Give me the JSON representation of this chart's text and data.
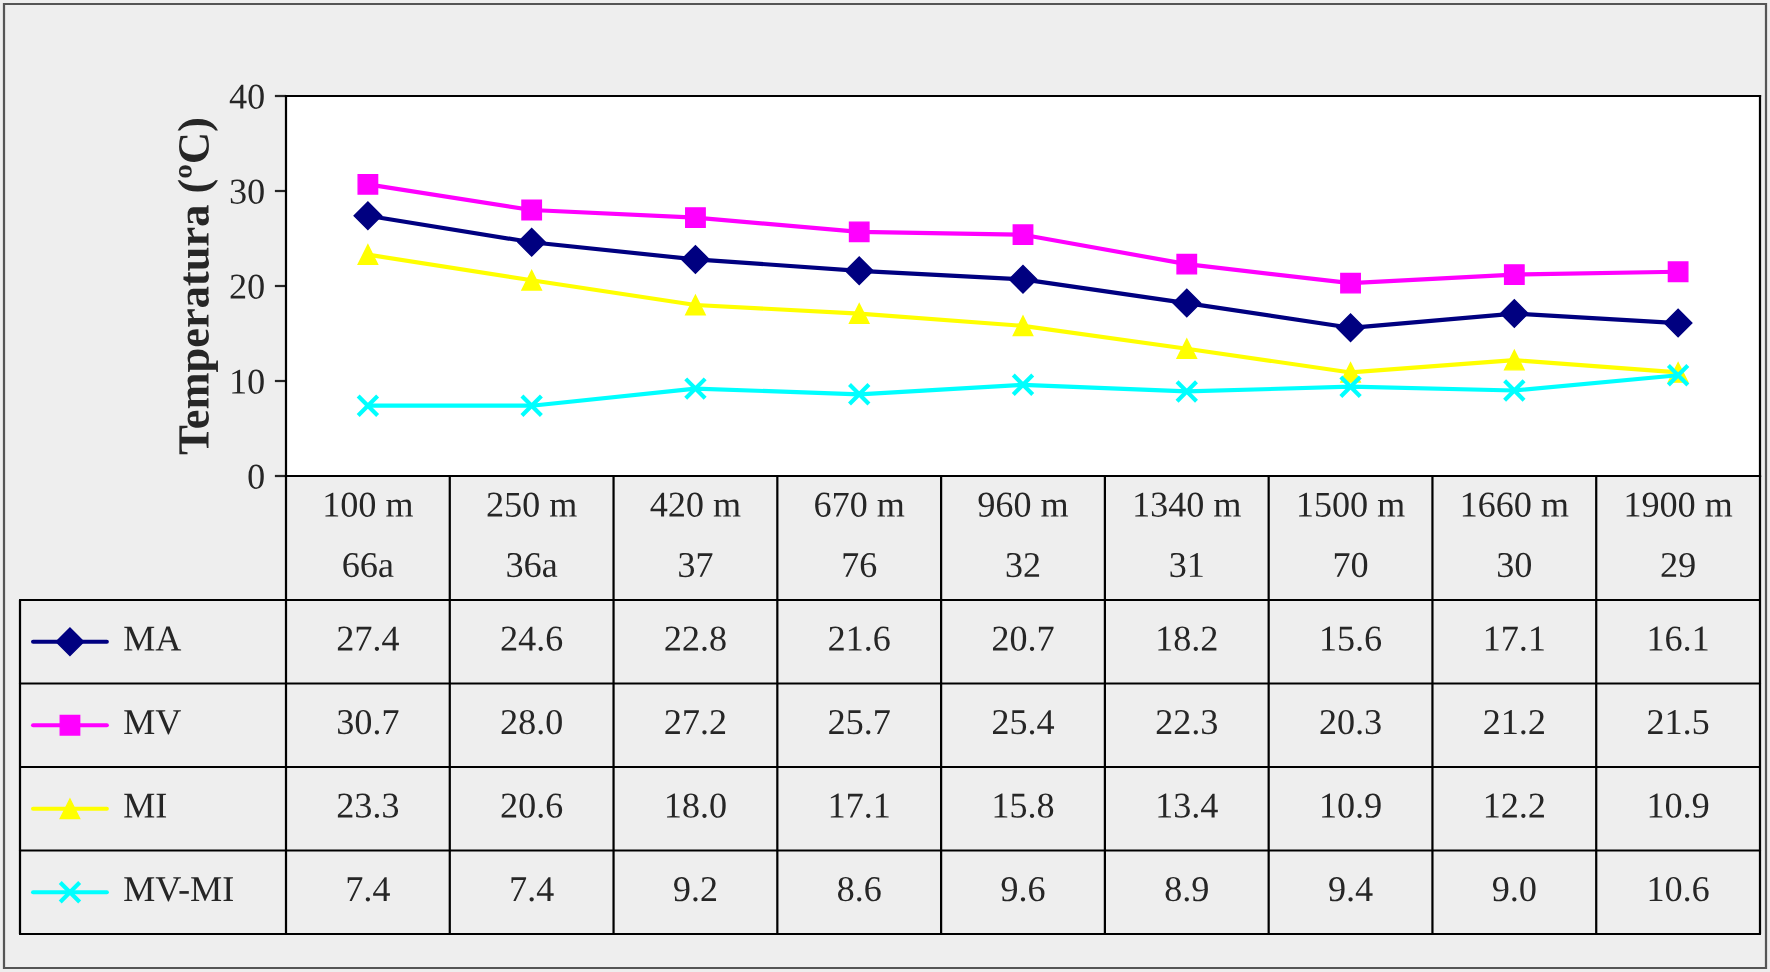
{
  "chart_data": {
    "type": "line",
    "ylabel": "Temperatura (ºC)",
    "categories": [
      "100 m\n66a",
      "250 m\n36a",
      "420 m\n37",
      "670 m\n76",
      "960 m\n32",
      "1340 m\n31",
      "1500 m\n70",
      "1660 m\n30",
      "1900 m\n29"
    ],
    "series": [
      {
        "name": "MA",
        "color": "#000080",
        "marker": "diamond",
        "values": [
          27.4,
          24.6,
          22.8,
          21.6,
          20.7,
          18.2,
          15.6,
          17.1,
          16.1
        ],
        "value_labels": [
          "27.4",
          "24.6",
          "22.8",
          "21.6",
          "20.7",
          "18.2",
          "15.6",
          "17.1",
          "16.1"
        ]
      },
      {
        "name": "MV",
        "color": "#ff00ff",
        "marker": "square",
        "values": [
          30.7,
          28.0,
          27.2,
          25.7,
          25.4,
          22.3,
          20.3,
          21.2,
          21.5
        ],
        "value_labels": [
          "30.7",
          "28.0",
          "27.2",
          "25.7",
          "25.4",
          "22.3",
          "20.3",
          "21.2",
          "21.5"
        ]
      },
      {
        "name": "MI",
        "color": "#ffff00",
        "marker": "triangle",
        "values": [
          23.3,
          20.6,
          18.0,
          17.1,
          15.8,
          13.4,
          10.9,
          12.2,
          10.9
        ],
        "value_labels": [
          "23.3",
          "20.6",
          "18.0",
          "17.1",
          "15.8",
          "13.4",
          "10.9",
          "12.2",
          "10.9"
        ]
      },
      {
        "name": "MV-MI",
        "color": "#00ffff",
        "marker": "cross",
        "values": [
          7.4,
          7.4,
          9.2,
          8.6,
          9.6,
          8.9,
          9.4,
          9.0,
          10.6
        ],
        "value_labels": [
          "7.4",
          "7.4",
          "9.2",
          "8.6",
          "9.6",
          "8.9",
          "9.4",
          "9.0",
          "10.6"
        ]
      }
    ],
    "ylim": [
      0,
      40
    ],
    "yticks": [
      0,
      10,
      20,
      30,
      40
    ],
    "grid": false,
    "legend": "bottom"
  }
}
